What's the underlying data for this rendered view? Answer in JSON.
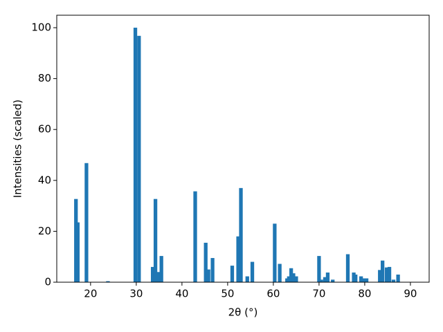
{
  "chart_data": {
    "type": "bar",
    "x": [
      16.8,
      17.2,
      19.1,
      23.8,
      29.8,
      30.6,
      33.6,
      34.2,
      34.8,
      35.5,
      42.9,
      45.2,
      45.8,
      46.7,
      51.0,
      52.3,
      52.9,
      54.3,
      55.4,
      60.3,
      61.4,
      63.0,
      63.4,
      63.9,
      64.4,
      65.0,
      70.0,
      70.5,
      71.3,
      71.9,
      73.0,
      76.3,
      77.6,
      78.0,
      79.2,
      79.8,
      80.4,
      83.3,
      83.9,
      84.8,
      85.4,
      86.3,
      87.3
    ],
    "values": [
      32.7,
      23.5,
      46.8,
      0.4,
      100,
      96.8,
      6,
      32.7,
      4,
      10.3,
      35.7,
      15.5,
      5,
      9.5,
      6.5,
      18,
      37,
      2.3,
      8,
      23,
      7.2,
      1.5,
      2.3,
      5.5,
      3.5,
      2.3,
      10.3,
      1,
      2,
      3.8,
      1,
      11,
      3.8,
      3,
      2.3,
      1.5,
      1.5,
      4.8,
      8.5,
      5.8,
      6,
      1,
      3
    ],
    "color": "#1f77b4",
    "x_label": "2θ (°)",
    "y_label": "Intensities (scaled)",
    "xlim": [
      12.6,
      94.1
    ],
    "xticks": [
      20,
      30,
      40,
      50,
      60,
      70,
      80,
      90
    ],
    "ylim": [
      0,
      104.9
    ],
    "yticks": [
      0,
      20,
      40,
      60,
      80,
      100
    ]
  }
}
